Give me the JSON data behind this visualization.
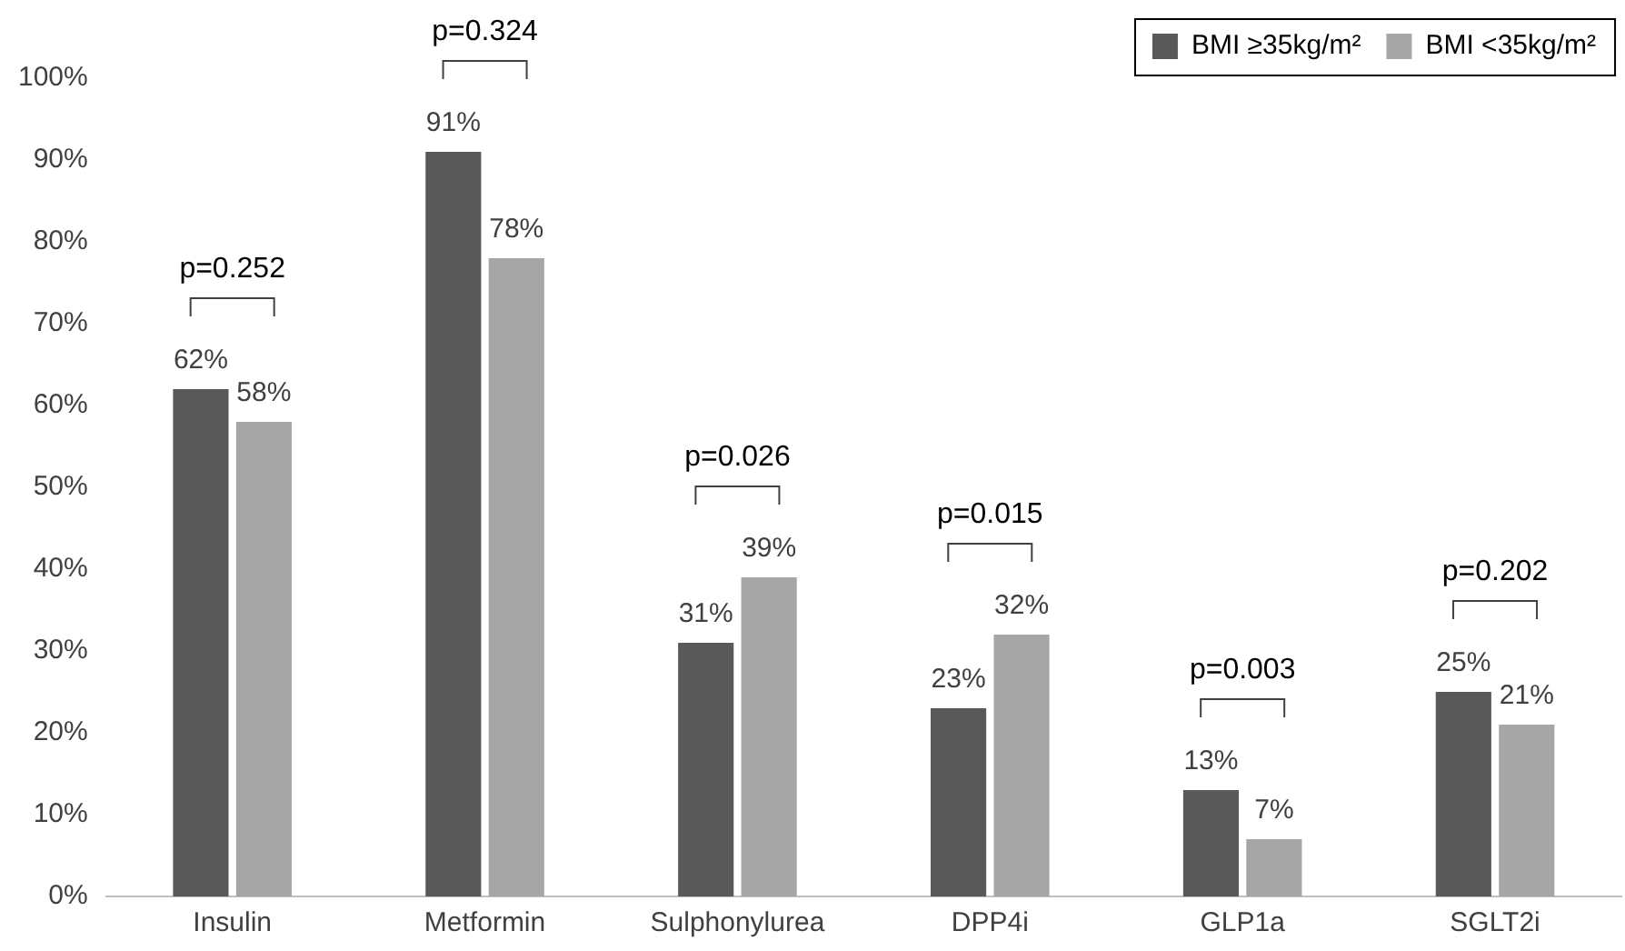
{
  "chart_data": {
    "type": "bar",
    "categories": [
      "Insulin",
      "Metformin",
      "Sulphonylurea",
      "DPP4i",
      "GLP1a",
      "SGLT2i"
    ],
    "series": [
      {
        "name": "BMI ≥35kg/m²",
        "color": "#595959",
        "values": [
          62,
          91,
          31,
          23,
          13,
          25
        ],
        "value_labels": [
          "62%",
          "91%",
          "31%",
          "23%",
          "13%",
          "25%"
        ]
      },
      {
        "name": "BMI <35kg/m²",
        "color": "#a6a6a6",
        "values": [
          58,
          78,
          39,
          32,
          7,
          21
        ],
        "value_labels": [
          "58%",
          "78%",
          "39%",
          "32%",
          "7%",
          "21%"
        ]
      }
    ],
    "ylim": [
      0,
      100
    ],
    "yticks": [
      {
        "value": 0,
        "label": "0%"
      },
      {
        "value": 10,
        "label": "10%"
      },
      {
        "value": 20,
        "label": "20%"
      },
      {
        "value": 30,
        "label": "30%"
      },
      {
        "value": 40,
        "label": "40%"
      },
      {
        "value": 50,
        "label": "50%"
      },
      {
        "value": 60,
        "label": "60%"
      },
      {
        "value": 70,
        "label": "70%"
      },
      {
        "value": 80,
        "label": "80%"
      },
      {
        "value": 90,
        "label": "90%"
      },
      {
        "value": 100,
        "label": "100%"
      }
    ],
    "grid": false,
    "legend": "top right",
    "annotations": [
      "p=0.252",
      "p=0.324",
      "p=0.026",
      "p=0.015",
      "p=0.003",
      "p=0.202"
    ]
  }
}
